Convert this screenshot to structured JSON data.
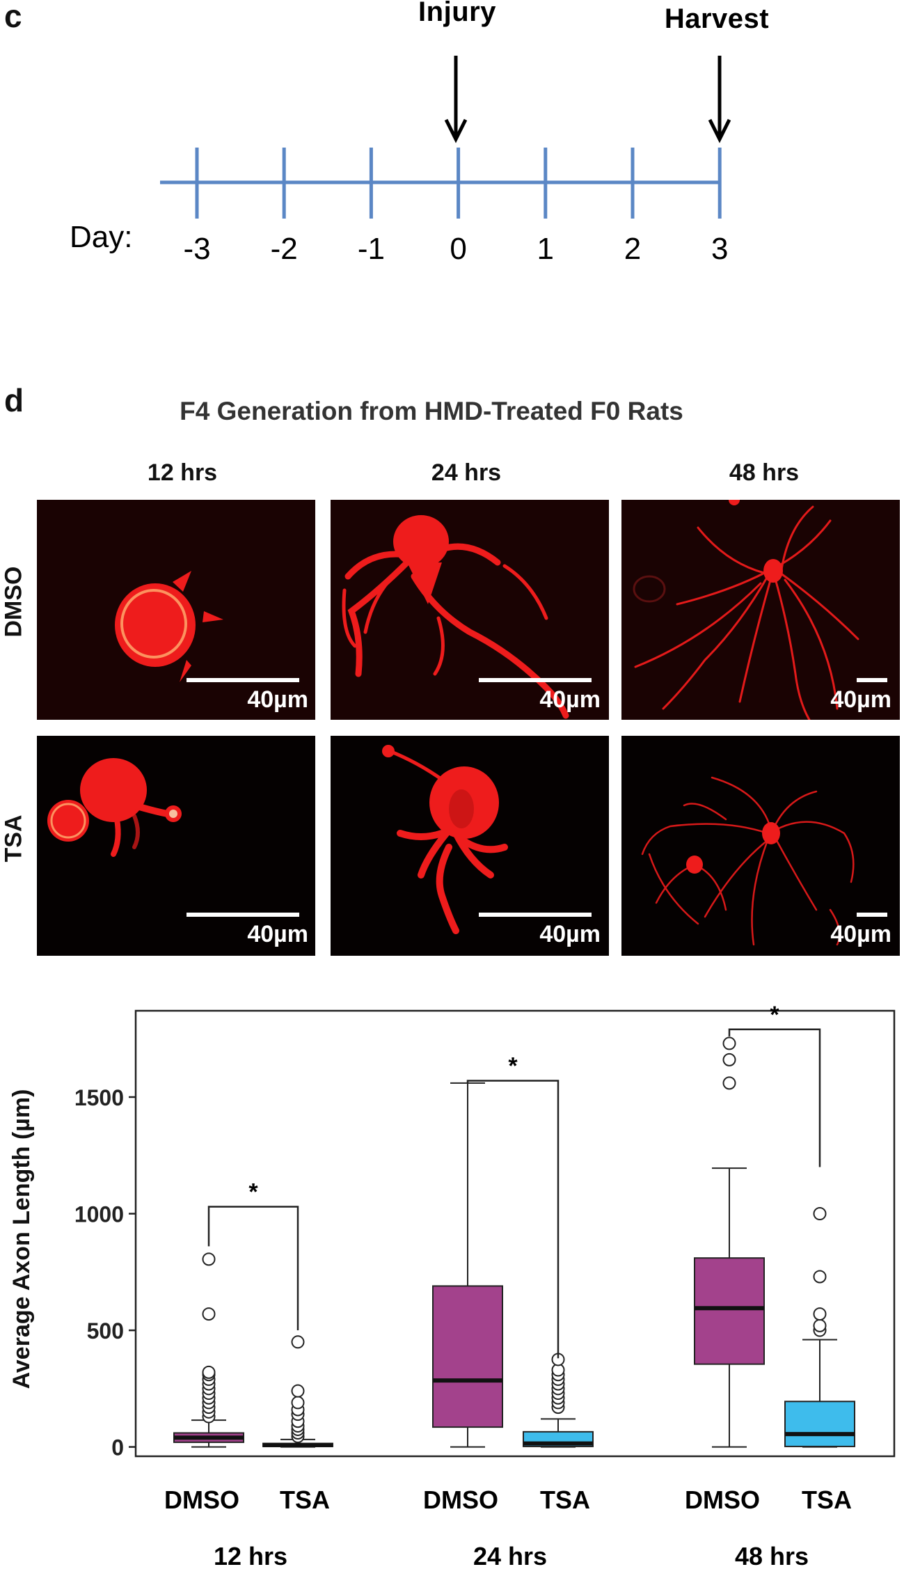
{
  "panel_c": {
    "letter": "c",
    "injury_label": "Injury",
    "harvest_label": "Harvest",
    "day_label": "Day:",
    "days": [
      "-3",
      "-2",
      "-1",
      "0",
      "1",
      "2",
      "3"
    ],
    "line_color": "#5b87c5"
  },
  "panel_d": {
    "letter": "d",
    "title": "F4 Generation from HMD-Treated F0 Rats",
    "columns": [
      "12 hrs",
      "24 hrs",
      "48 hrs"
    ],
    "rows": [
      "DMSO",
      "TSA"
    ],
    "scale_label": "40µm",
    "neuron_color": "#ee1c1c"
  },
  "chart_data": {
    "type": "box",
    "ylabel": "Average Axon Length (µm)",
    "yticks": [
      0,
      500,
      1000,
      1500
    ],
    "ylim": [
      -40,
      1870
    ],
    "groups": [
      "12 hrs",
      "24 hrs",
      "48 hrs"
    ],
    "series_labels": [
      "DMSO",
      "TSA"
    ],
    "colors": {
      "DMSO": "#a3428c",
      "TSA": "#3ebcec"
    },
    "significance": "*",
    "boxes": [
      {
        "group": "12 hrs",
        "series": "DMSO",
        "min": 0,
        "q1": 20,
        "median": 40,
        "q3": 60,
        "max": 115,
        "outliers": [
          130,
          150,
          170,
          190,
          210,
          230,
          250,
          270,
          290,
          310,
          320,
          570,
          805
        ]
      },
      {
        "group": "12 hrs",
        "series": "TSA",
        "min": 0,
        "q1": 2,
        "median": 8,
        "q3": 15,
        "max": 32,
        "outliers": [
          45,
          60,
          75,
          90,
          110,
          140,
          160,
          190,
          240,
          450
        ]
      },
      {
        "group": "24 hrs",
        "series": "DMSO",
        "min": 0,
        "q1": 85,
        "median": 285,
        "q3": 690,
        "max": 1560,
        "outliers": []
      },
      {
        "group": "24 hrs",
        "series": "TSA",
        "min": 0,
        "q1": 2,
        "median": 15,
        "q3": 65,
        "max": 120,
        "outliers": [
          170,
          190,
          210,
          230,
          250,
          270,
          290,
          310,
          330,
          375
        ]
      },
      {
        "group": "48 hrs",
        "series": "DMSO",
        "min": 0,
        "q1": 355,
        "median": 595,
        "q3": 810,
        "max": 1195,
        "outliers": [
          1560,
          1660,
          1730
        ]
      },
      {
        "group": "48 hrs",
        "series": "TSA",
        "min": 0,
        "q1": 2,
        "median": 55,
        "q3": 195,
        "max": 460,
        "outliers": [
          500,
          520,
          570,
          730,
          1000
        ]
      }
    ],
    "brackets": [
      {
        "group": "12 hrs",
        "y": 1030,
        "left_drop_to": 860,
        "right_drop_to": 500
      },
      {
        "group": "24 hrs",
        "y": 1570,
        "left_drop_to": 1560,
        "right_drop_to": 380
      },
      {
        "group": "48 hrs",
        "y": 1790,
        "left_drop_to": 1760,
        "right_drop_to": 1200
      }
    ]
  }
}
